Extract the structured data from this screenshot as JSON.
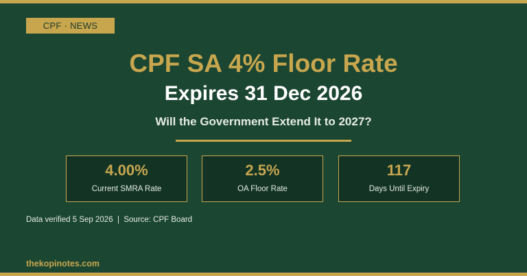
{
  "tag": "CPF · NEWS",
  "title": "CPF SA 4% Floor Rate",
  "subtitle": "Expires 31 Dec 2026",
  "question": "Will the Government Extend It to 2027?",
  "stats": [
    {
      "value": "4.00%",
      "label": "Current SMRA Rate"
    },
    {
      "value": "2.5%",
      "label": "OA Floor Rate"
    },
    {
      "value": "117",
      "label": "Days Until Expiry"
    }
  ],
  "footnote": "Data verified 5 Sep 2026  |  Source: CPF Board",
  "site": "thekopinotes.com",
  "colors": {
    "background": "#1b4632",
    "accent_gold": "#c8a64e",
    "card_background": "#133425"
  }
}
